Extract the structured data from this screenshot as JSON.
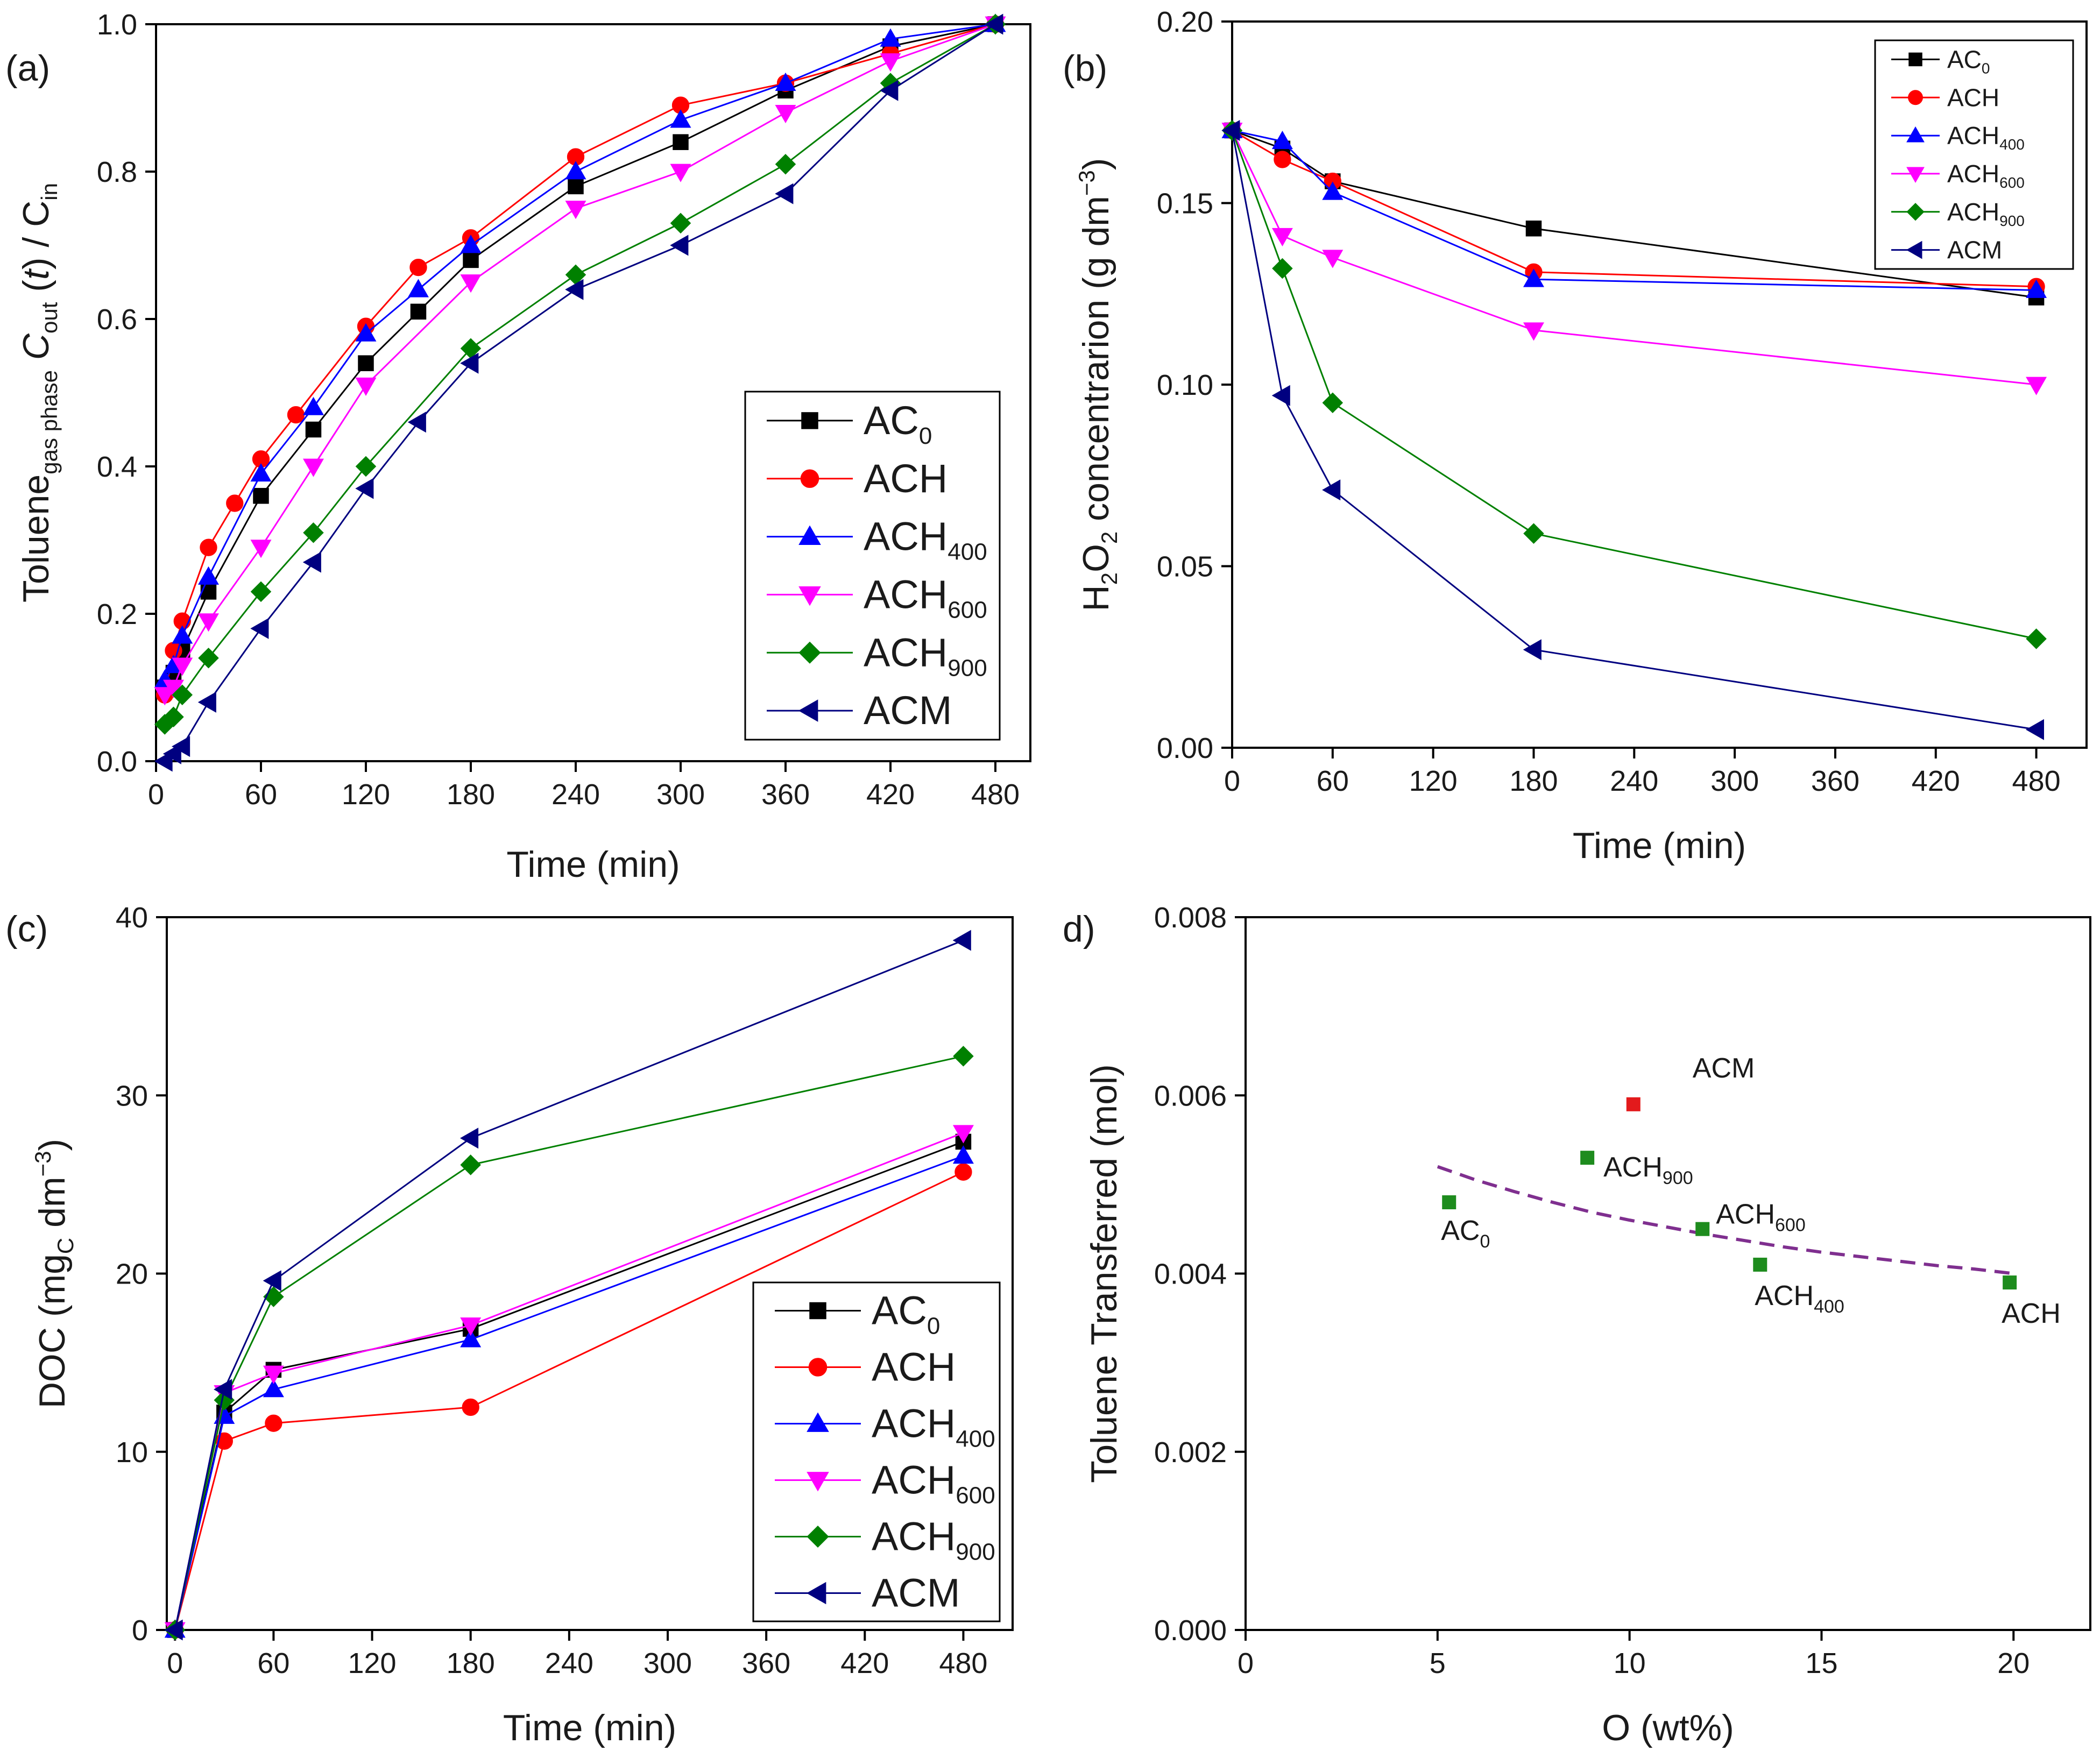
{
  "colors": {
    "AC0": "#000000",
    "ACH": "#ff0000",
    "ACH400": "#0000ff",
    "ACH600": "#ff00ff",
    "ACH900": "#008000",
    "ACM": "#000080",
    "dash": "#7f2f8f",
    "acmPoint": "#e31a1c",
    "greenPoint": "#1e8c1e"
  },
  "series_meta": [
    {
      "key": "AC0",
      "base": "AC",
      "sub": "0",
      "marker": "square"
    },
    {
      "key": "ACH",
      "base": "ACH",
      "sub": "",
      "marker": "circle"
    },
    {
      "key": "ACH400",
      "base": "ACH",
      "sub": "400",
      "marker": "triUp"
    },
    {
      "key": "ACH600",
      "base": "ACH",
      "sub": "600",
      "marker": "triDown"
    },
    {
      "key": "ACH900",
      "base": "ACH",
      "sub": "900",
      "marker": "diamond"
    },
    {
      "key": "ACM",
      "base": "ACM",
      "sub": "",
      "marker": "triLeft"
    }
  ],
  "chart_data": [
    {
      "id": "a",
      "panel_label": "(a)",
      "type": "line",
      "xlabel": "Time (min)",
      "ylabel_parts": [
        "Toluene",
        "gas phase",
        " C",
        "out",
        " (",
        "t",
        ") / C",
        "in"
      ],
      "xlim": [
        0,
        500
      ],
      "ylim": [
        0,
        1.0
      ],
      "xticks": [
        0,
        60,
        120,
        180,
        240,
        300,
        360,
        420,
        480
      ],
      "yticks": [
        0.0,
        0.2,
        0.4,
        0.6,
        0.8,
        1.0
      ],
      "ytick_labels": [
        "0.0",
        "0.2",
        "0.4",
        "0.6",
        "0.8",
        "1.0"
      ],
      "legend_position": "bottom-right",
      "series": [
        {
          "key": "AC0",
          "x": [
            5,
            10,
            15,
            30,
            60,
            90,
            120,
            150,
            180,
            240,
            300,
            360,
            420,
            480
          ],
          "y": [
            0.1,
            0.12,
            0.15,
            0.23,
            0.36,
            0.45,
            0.54,
            0.61,
            0.68,
            0.78,
            0.84,
            0.91,
            0.97,
            1.0
          ]
        },
        {
          "key": "ACH",
          "x": [
            5,
            10,
            15,
            30,
            45,
            60,
            80,
            120,
            150,
            180,
            240,
            300,
            360,
            420,
            480
          ],
          "y": [
            0.09,
            0.15,
            0.19,
            0.29,
            0.35,
            0.41,
            0.47,
            0.59,
            0.67,
            0.71,
            0.82,
            0.89,
            0.92,
            0.96,
            1.0
          ]
        },
        {
          "key": "ACH400",
          "x": [
            5,
            10,
            15,
            30,
            60,
            90,
            120,
            150,
            180,
            240,
            300,
            360,
            420,
            480
          ],
          "y": [
            0.11,
            0.13,
            0.17,
            0.25,
            0.39,
            0.48,
            0.58,
            0.64,
            0.7,
            0.8,
            0.87,
            0.92,
            0.98,
            1.0
          ]
        },
        {
          "key": "ACH600",
          "x": [
            5,
            10,
            15,
            30,
            60,
            90,
            120,
            180,
            240,
            300,
            360,
            420,
            480
          ],
          "y": [
            0.09,
            0.1,
            0.13,
            0.19,
            0.29,
            0.4,
            0.51,
            0.65,
            0.75,
            0.8,
            0.88,
            0.95,
            1.0
          ]
        },
        {
          "key": "ACH900",
          "x": [
            5,
            10,
            15,
            30,
            60,
            90,
            120,
            180,
            240,
            300,
            360,
            420,
            480
          ],
          "y": [
            0.05,
            0.06,
            0.09,
            0.14,
            0.23,
            0.31,
            0.4,
            0.56,
            0.66,
            0.73,
            0.81,
            0.92,
            1.0
          ]
        },
        {
          "key": "ACM",
          "x": [
            5,
            10,
            15,
            30,
            60,
            90,
            120,
            150,
            180,
            240,
            300,
            360,
            420,
            480
          ],
          "y": [
            0.0,
            0.01,
            0.02,
            0.08,
            0.18,
            0.27,
            0.37,
            0.46,
            0.54,
            0.64,
            0.7,
            0.77,
            0.91,
            1.0
          ]
        }
      ]
    },
    {
      "id": "b",
      "panel_label": "(b)",
      "type": "line",
      "xlabel": "Time (min)",
      "ylabel_parts": [
        "H",
        "2",
        "O",
        "2",
        " concentrarion (g dm",
        "−3",
        ")"
      ],
      "xlim": [
        0,
        510
      ],
      "ylim": [
        0,
        0.2
      ],
      "xticks": [
        0,
        60,
        120,
        180,
        240,
        300,
        360,
        420,
        480
      ],
      "yticks": [
        0.0,
        0.05,
        0.1,
        0.15,
        0.2
      ],
      "ytick_labels": [
        "0.00",
        "0.05",
        "0.10",
        "0.15",
        "0.20"
      ],
      "legend_position": "top-right",
      "series": [
        {
          "key": "AC0",
          "x": [
            0,
            30,
            60,
            180,
            480
          ],
          "y": [
            0.17,
            0.165,
            0.156,
            0.143,
            0.124
          ]
        },
        {
          "key": "ACH",
          "x": [
            0,
            30,
            60,
            180,
            480
          ],
          "y": [
            0.17,
            0.162,
            0.156,
            0.131,
            0.127
          ]
        },
        {
          "key": "ACH400",
          "x": [
            0,
            30,
            60,
            180,
            480
          ],
          "y": [
            0.17,
            0.167,
            0.153,
            0.129,
            0.126
          ]
        },
        {
          "key": "ACH600",
          "x": [
            0,
            30,
            60,
            180,
            480
          ],
          "y": [
            0.17,
            0.141,
            0.135,
            0.115,
            0.1
          ]
        },
        {
          "key": "ACH900",
          "x": [
            0,
            30,
            60,
            180,
            480
          ],
          "y": [
            0.17,
            0.132,
            0.095,
            0.059,
            0.03
          ]
        },
        {
          "key": "ACM",
          "x": [
            0,
            30,
            60,
            180,
            480
          ],
          "y": [
            0.17,
            0.097,
            0.071,
            0.027,
            0.005
          ]
        }
      ]
    },
    {
      "id": "c",
      "panel_label": "(c)",
      "type": "line",
      "xlabel": "Time (min)",
      "ylabel_parts": [
        "DOC (mg",
        "C",
        " dm",
        "−3",
        ")"
      ],
      "xlim": [
        -5,
        510
      ],
      "ylim": [
        0,
        40
      ],
      "xticks": [
        0,
        60,
        120,
        180,
        240,
        300,
        360,
        420,
        480
      ],
      "yticks": [
        0,
        10,
        20,
        30,
        40
      ],
      "ytick_labels": [
        "0",
        "10",
        "20",
        "30",
        "40"
      ],
      "legend_position": "bottom-right",
      "series": [
        {
          "key": "AC0",
          "x": [
            0,
            30,
            60,
            180,
            480
          ],
          "y": [
            0,
            12.2,
            14.6,
            16.9,
            27.4
          ]
        },
        {
          "key": "ACH",
          "x": [
            0,
            30,
            60,
            180,
            480
          ],
          "y": [
            0,
            10.6,
            11.6,
            12.5,
            25.7
          ]
        },
        {
          "key": "ACH400",
          "x": [
            0,
            30,
            60,
            180,
            480
          ],
          "y": [
            0,
            12.0,
            13.5,
            16.3,
            26.6
          ]
        },
        {
          "key": "ACH600",
          "x": [
            0,
            30,
            60,
            180,
            480
          ],
          "y": [
            0,
            13.3,
            14.4,
            17.1,
            27.9
          ]
        },
        {
          "key": "ACH900",
          "x": [
            0,
            30,
            60,
            180,
            480
          ],
          "y": [
            0,
            12.9,
            18.7,
            26.1,
            32.2
          ]
        },
        {
          "key": "ACM",
          "x": [
            0,
            30,
            60,
            180,
            480
          ],
          "y": [
            0,
            13.5,
            19.6,
            27.6,
            38.7
          ]
        }
      ]
    },
    {
      "id": "d",
      "panel_label": "d)",
      "type": "scatter",
      "xlabel": "O (wt%)",
      "ylabel_parts": [
        "Toluene Transferred (mol)"
      ],
      "xlim": [
        0,
        22
      ],
      "ylim": [
        0,
        0.008
      ],
      "xticks": [
        0,
        5,
        10,
        15,
        20
      ],
      "yticks": [
        0.0,
        0.002,
        0.004,
        0.006,
        0.008
      ],
      "ytick_labels": [
        "0.000",
        "0.002",
        "0.004",
        "0.006",
        "0.008"
      ],
      "points": [
        {
          "name": "AC",
          "sub": "0",
          "x": 5.3,
          "y": 0.0048,
          "color": "greenPoint",
          "label_pos": "below-right"
        },
        {
          "name": "ACH",
          "sub": "900",
          "x": 8.9,
          "y": 0.0053,
          "color": "greenPoint",
          "label_pos": "right-below"
        },
        {
          "name": "ACM",
          "sub": "",
          "x": 10.1,
          "y": 0.0059,
          "color": "acmPoint",
          "label_pos": "above-right"
        },
        {
          "name": "ACH",
          "sub": "600",
          "x": 11.9,
          "y": 0.0045,
          "color": "greenPoint",
          "label_pos": "right-above"
        },
        {
          "name": "ACH",
          "sub": "400",
          "x": 13.4,
          "y": 0.0041,
          "color": "greenPoint",
          "label_pos": "below-right"
        },
        {
          "name": "ACH",
          "sub": "",
          "x": 19.9,
          "y": 0.0039,
          "color": "greenPoint",
          "label_pos": "below"
        }
      ],
      "fit_curve": {
        "style": "dashed",
        "x": [
          5,
          6,
          7,
          8,
          9,
          10,
          11,
          12,
          13,
          14,
          15,
          16,
          17,
          18,
          19,
          20
        ],
        "y": [
          0.0052,
          0.00505,
          0.00492,
          0.0048,
          0.00469,
          0.0046,
          0.00452,
          0.00444,
          0.00437,
          0.0043,
          0.00424,
          0.00419,
          0.00414,
          0.00409,
          0.00405,
          0.004
        ]
      }
    }
  ]
}
